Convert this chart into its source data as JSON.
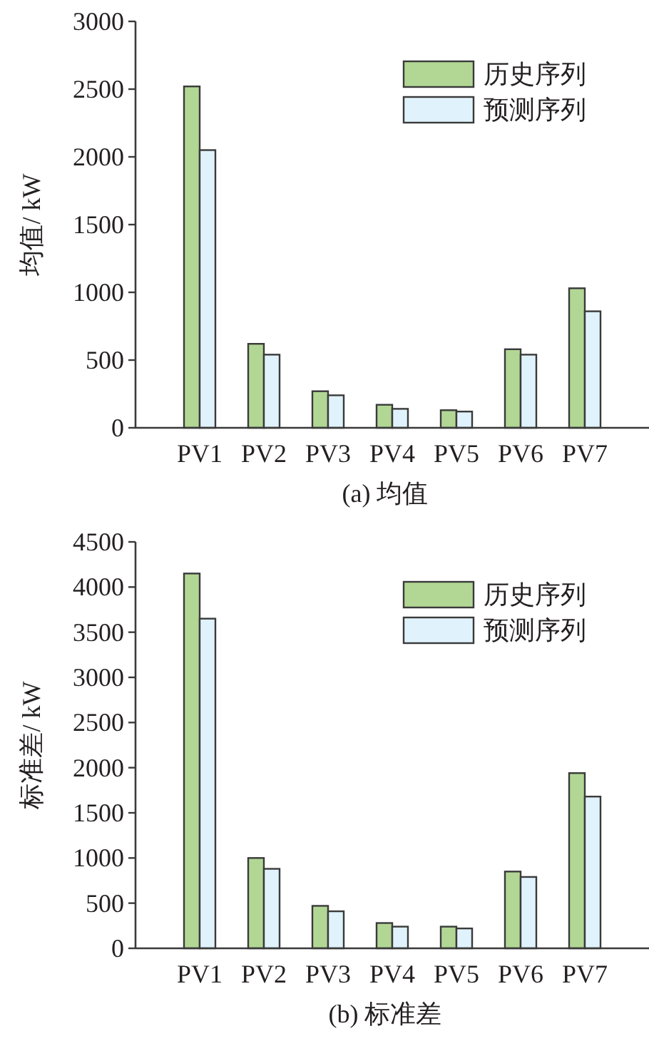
{
  "chart_data": [
    {
      "type": "bar",
      "categories": [
        "PV1",
        "PV2",
        "PV3",
        "PV4",
        "PV5",
        "PV6",
        "PV7"
      ],
      "ylabel": "均值/ kW",
      "ylim": [
        0,
        3000
      ],
      "yticks": [
        0,
        500,
        1000,
        1500,
        2000,
        2500,
        3000
      ],
      "legend": "top right",
      "series": [
        {
          "name": "历史序列",
          "color": "#b2d795",
          "values": [
            2520,
            620,
            270,
            170,
            130,
            580,
            1030
          ]
        },
        {
          "name": "预测序列",
          "color": "#e0f2fb",
          "values": [
            2050,
            540,
            240,
            140,
            120,
            540,
            860
          ]
        }
      ],
      "annotations": [
        "(a)  均值"
      ]
    },
    {
      "type": "bar",
      "categories": [
        "PV1",
        "PV2",
        "PV3",
        "PV4",
        "PV5",
        "PV6",
        "PV7"
      ],
      "ylabel": "标准差/ kW",
      "ylim": [
        0,
        4500
      ],
      "yticks": [
        0,
        500,
        1000,
        1500,
        2000,
        2500,
        3000,
        3500,
        4000,
        4500
      ],
      "legend": "top right",
      "series": [
        {
          "name": "历史序列",
          "color": "#b2d795",
          "values": [
            4150,
            1000,
            470,
            280,
            240,
            850,
            1940
          ]
        },
        {
          "name": "预测序列",
          "color": "#e0f2fb",
          "values": [
            3650,
            880,
            410,
            240,
            220,
            790,
            1680
          ]
        }
      ],
      "annotations": [
        "(b)  标准差"
      ]
    }
  ]
}
